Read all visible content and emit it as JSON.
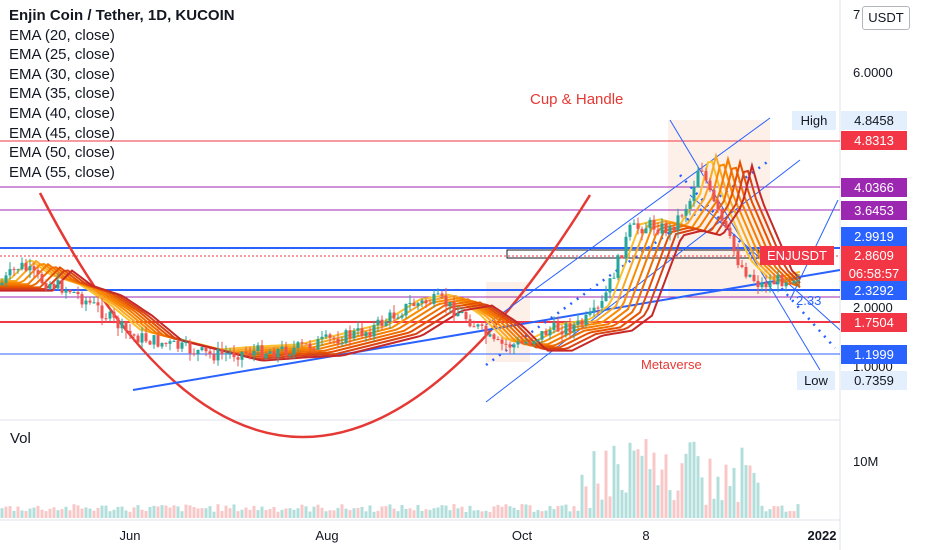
{
  "header": {
    "title": "Enjin Coin / Tether, 1D, KUCOIN",
    "indicators": [
      "EMA (20, close)",
      "EMA (25, close)",
      "EMA (30, close)",
      "EMA (35, close)",
      "EMA (40, close)",
      "EMA (45, close)",
      "EMA (50, close)",
      "EMA (55, close)"
    ]
  },
  "unit": "USDT",
  "volume_label": "Vol",
  "chart_data": {
    "type": "candlestick",
    "symbol": "ENJUSDT",
    "x_ticks": [
      "Jun",
      "Aug",
      "Oct",
      "8",
      "2022"
    ],
    "y_ticks": [
      "7",
      "6.0000",
      "2.0000",
      "1.0000"
    ],
    "y_axis_labels": [
      {
        "text": "High",
        "value": "4.8458",
        "kind": "plain"
      },
      {
        "text": "",
        "value": "4.8313",
        "kind": "red"
      },
      {
        "text": "",
        "value": "4.0366",
        "kind": "purple"
      },
      {
        "text": "",
        "value": "3.6453",
        "kind": "purple"
      },
      {
        "text": "",
        "value": "2.9919",
        "kind": "blue"
      },
      {
        "text": "ENJUSDT",
        "value": "2.8609",
        "kind": "current",
        "countdown": "06:58:57"
      },
      {
        "text": "",
        "value": "2.3292",
        "kind": "blue"
      },
      {
        "text": "",
        "value": "1.7504",
        "kind": "red"
      },
      {
        "text": "",
        "value": "1.1999",
        "kind": "blue"
      },
      {
        "text": "Low",
        "value": "0.7359",
        "kind": "plain"
      }
    ],
    "volume_ticks": [
      "10M"
    ],
    "annotations": [
      "Cup & Handle",
      "Metaverse",
      "2.33"
    ],
    "horizontal_levels": [
      4.8313,
      4.0366,
      3.6453,
      2.9919,
      2.3292,
      1.7504,
      1.1999
    ],
    "current_price": 2.8609,
    "high": 4.8458,
    "low": 0.7359,
    "colors": {
      "up": "#26a69a",
      "down": "#ef5350",
      "blue": "#2962ff",
      "purple": "#9c27b0",
      "red": "#f23645"
    }
  }
}
